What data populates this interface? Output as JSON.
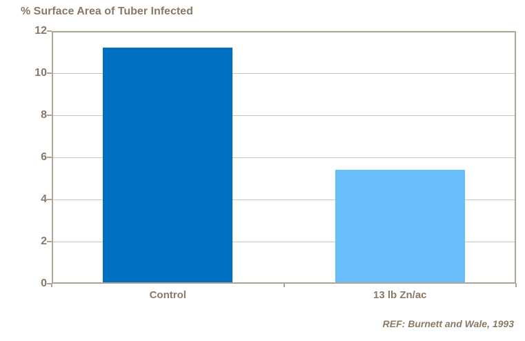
{
  "title": "% Surface Area of Tuber Infected",
  "reference": "REF: Burnett and Wale, 1993",
  "chart_data": {
    "type": "bar",
    "categories": [
      "Control",
      "13 lb Zn/ac"
    ],
    "values": [
      11.2,
      5.4
    ],
    "title": "% Surface Area of Tuber Infected",
    "xlabel": "",
    "ylabel": "",
    "ylim": [
      0,
      12
    ],
    "yticks": [
      0,
      2,
      4,
      6,
      8,
      10,
      12
    ],
    "bar_colors": [
      "#0070c0",
      "#69befa"
    ],
    "grid": true,
    "legend": "none",
    "annotation": "REF: Burnett and Wale, 1993"
  },
  "colors": {
    "text_brown": "#8a7866",
    "axis": "#afa596",
    "gridline": "#ccc3b6",
    "bar_dark_blue": "#0070c0",
    "bar_light_blue": "#69befa"
  }
}
